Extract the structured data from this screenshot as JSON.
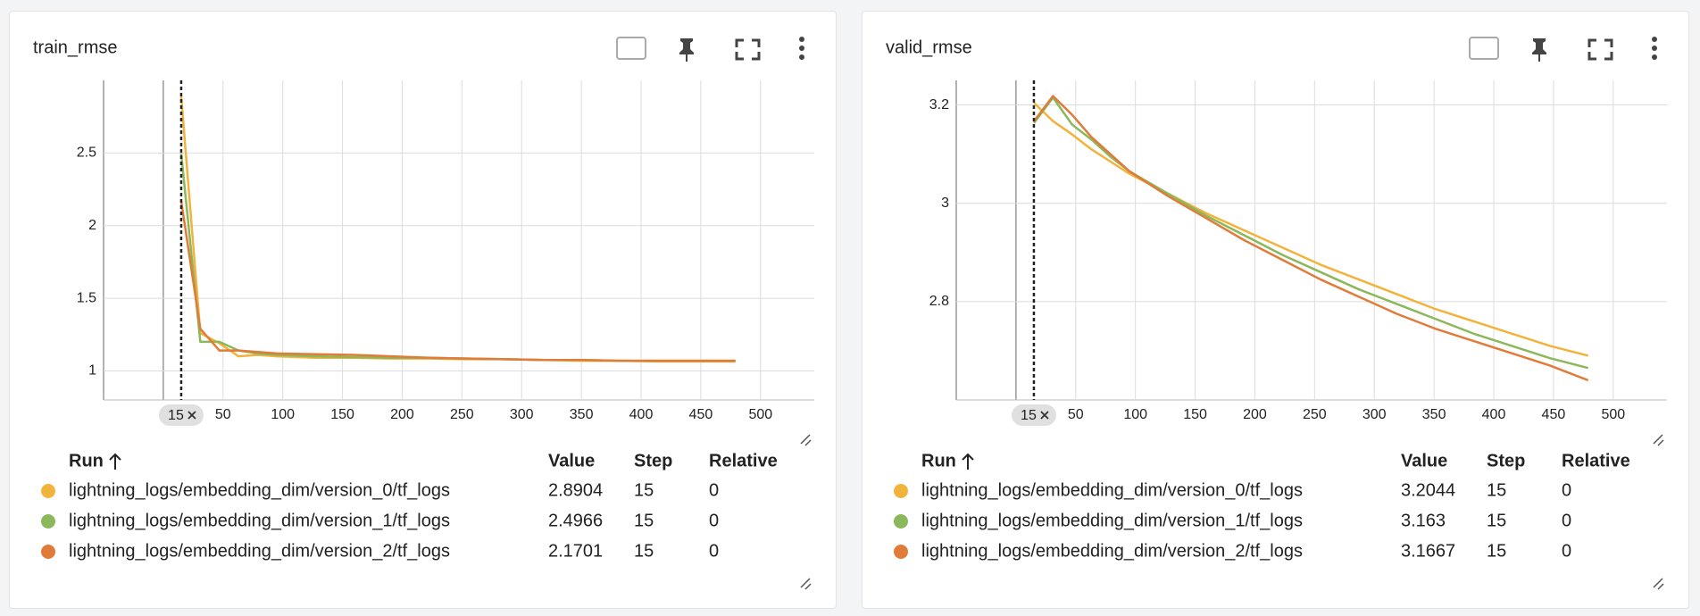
{
  "chart_data": [
    {
      "type": "line",
      "title": "train_rmse",
      "cursor_step": 15,
      "x": [
        15,
        31,
        47,
        63,
        79,
        95,
        127,
        159,
        191,
        223,
        255,
        287,
        319,
        351,
        383,
        415,
        447,
        479
      ],
      "series": [
        {
          "name": "lightning_logs/embedding_dim/version_0/tf_logs",
          "color": "#f2b33d",
          "values": [
            2.8904,
            1.26,
            1.19,
            1.1,
            1.11,
            1.1,
            1.09,
            1.09,
            1.085,
            1.085,
            1.08,
            1.08,
            1.075,
            1.07,
            1.07,
            1.065,
            1.065,
            1.065
          ]
        },
        {
          "name": "lightning_logs/embedding_dim/version_1/tf_logs",
          "color": "#8bb85a",
          "values": [
            2.4966,
            1.2,
            1.2,
            1.14,
            1.12,
            1.11,
            1.1,
            1.095,
            1.09,
            1.09,
            1.085,
            1.08,
            1.075,
            1.075,
            1.07,
            1.07,
            1.07,
            1.07
          ]
        },
        {
          "name": "lightning_logs/embedding_dim/version_2/tf_logs",
          "color": "#e07b39",
          "values": [
            2.1701,
            1.29,
            1.14,
            1.14,
            1.13,
            1.12,
            1.115,
            1.11,
            1.1,
            1.09,
            1.085,
            1.08,
            1.075,
            1.075,
            1.07,
            1.07,
            1.07,
            1.07
          ]
        }
      ],
      "xlim": [
        -50,
        545
      ],
      "xticks": [
        50,
        100,
        150,
        200,
        250,
        300,
        350,
        400,
        450,
        500
      ],
      "ylim": [
        0.8,
        3.0
      ],
      "yticks": [
        1,
        1.5,
        2,
        2.5
      ],
      "grid": true,
      "table": {
        "headers": [
          "Run",
          "Value",
          "Step",
          "Relative"
        ],
        "rows": [
          {
            "value": 2.8904,
            "step": 15,
            "relative": 0
          },
          {
            "value": 2.4966,
            "step": 15,
            "relative": 0
          },
          {
            "value": 2.1701,
            "step": 15,
            "relative": 0
          }
        ]
      }
    },
    {
      "type": "line",
      "title": "valid_rmse",
      "cursor_step": 15,
      "x": [
        15,
        31,
        47,
        63,
        79,
        95,
        127,
        159,
        191,
        223,
        255,
        287,
        319,
        351,
        383,
        415,
        447,
        479
      ],
      "series": [
        {
          "name": "lightning_logs/embedding_dim/version_0/tf_logs",
          "color": "#f2b33d",
          "values": [
            3.2044,
            3.167,
            3.14,
            3.11,
            3.085,
            3.06,
            3.02,
            2.98,
            2.945,
            2.91,
            2.875,
            2.845,
            2.815,
            2.785,
            2.76,
            2.735,
            2.71,
            2.69
          ]
        },
        {
          "name": "lightning_logs/embedding_dim/version_1/tf_logs",
          "color": "#8bb85a",
          "values": [
            3.163,
            3.215,
            3.16,
            3.13,
            3.095,
            3.065,
            3.02,
            2.975,
            2.935,
            2.895,
            2.86,
            2.825,
            2.795,
            2.765,
            2.735,
            2.71,
            2.685,
            2.665
          ]
        },
        {
          "name": "lightning_logs/embedding_dim/version_2/tf_logs",
          "color": "#e07b39",
          "values": [
            3.1667,
            3.218,
            3.18,
            3.135,
            3.1,
            3.065,
            3.015,
            2.97,
            2.925,
            2.885,
            2.845,
            2.81,
            2.775,
            2.745,
            2.72,
            2.695,
            2.67,
            2.64
          ]
        }
      ],
      "xlim": [
        -50,
        545
      ],
      "xticks": [
        50,
        100,
        150,
        200,
        250,
        300,
        350,
        400,
        450,
        500
      ],
      "ylim": [
        2.6,
        3.25
      ],
      "yticks": [
        2.8,
        3,
        3.2
      ],
      "grid": true,
      "table": {
        "headers": [
          "Run",
          "Value",
          "Step",
          "Relative"
        ],
        "rows": [
          {
            "value": 3.2044,
            "step": 15,
            "relative": 0
          },
          {
            "value": 3.163,
            "step": 15,
            "relative": 0
          },
          {
            "value": 3.1667,
            "step": 15,
            "relative": 0
          }
        ]
      }
    }
  ]
}
